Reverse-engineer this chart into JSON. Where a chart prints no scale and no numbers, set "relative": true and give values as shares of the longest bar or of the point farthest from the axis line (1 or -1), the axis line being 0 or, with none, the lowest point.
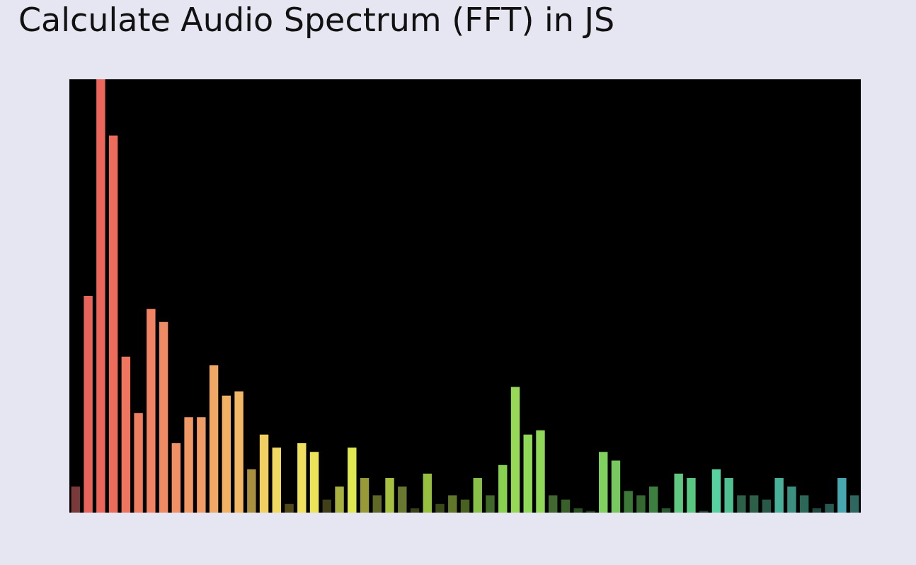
{
  "chart_data": {
    "type": "bar",
    "title": "Calculate Audio Spectrum (FFT) in JS",
    "relative": true,
    "categories": [
      null,
      null,
      null,
      null,
      null,
      null,
      null,
      null,
      null,
      null,
      null,
      null,
      null,
      null,
      null,
      null,
      null,
      null,
      null,
      null,
      null,
      null,
      null,
      null,
      null,
      null,
      null,
      null,
      null,
      null,
      null,
      null,
      null,
      null,
      null,
      null,
      null,
      null,
      null,
      null,
      null,
      null,
      null,
      null,
      null,
      null,
      null,
      null,
      null,
      null,
      null,
      null,
      null,
      null,
      null,
      null,
      null,
      null,
      null,
      null,
      null,
      null,
      null
    ],
    "values": [
      0.06,
      0.5,
      1.0,
      0.87,
      0.36,
      0.23,
      0.47,
      0.44,
      0.16,
      0.22,
      0.22,
      0.34,
      0.27,
      0.28,
      0.1,
      0.18,
      0.15,
      0.02,
      0.16,
      0.14,
      0.03,
      0.06,
      0.15,
      0.08,
      0.04,
      0.08,
      0.06,
      0.01,
      0.09,
      0.02,
      0.04,
      0.03,
      0.08,
      0.04,
      0.11,
      0.29,
      0.18,
      0.19,
      0.04,
      0.03,
      0.01,
      0.004,
      0.14,
      0.12,
      0.05,
      0.04,
      0.06,
      0.01,
      0.09,
      0.08,
      0.004,
      0.1,
      0.08,
      0.04,
      0.04,
      0.03,
      0.08,
      0.06,
      0.04,
      0.01,
      0.02,
      0.08,
      0.04
    ],
    "colors": [
      "#7a3a3a",
      "#e8645a",
      "#ea665a",
      "#ec6c5c",
      "#ee765e",
      "#ef7e60",
      "#f08462",
      "#f08a62",
      "#f09064",
      "#f09866",
      "#f09c66",
      "#f0a866",
      "#f2b266",
      "#f2b866",
      "#a89040",
      "#f2d060",
      "#f2d860",
      "#504818",
      "#f0e060",
      "#ece458",
      "#404018",
      "#a8b040",
      "#e0e850",
      "#989a38",
      "#606828",
      "#a8c040",
      "#687830",
      "#384018",
      "#98c040",
      "#384818",
      "#607828",
      "#486020",
      "#88c048",
      "#406828",
      "#88d050",
      "#98d858",
      "#90d858",
      "#90d858",
      "#406830",
      "#386028",
      "#285020",
      "#204018",
      "#80d060",
      "#78c860",
      "#3c7838",
      "#346830",
      "#3c8040",
      "#285830",
      "#60c880",
      "#58c880",
      "#204030",
      "#58d0a0",
      "#50c090",
      "#2c6048",
      "#2c6048",
      "#285848",
      "#48b098",
      "#3c9080",
      "#2c6858",
      "#204840",
      "#285850",
      "#48a8b0",
      "#2c6860"
    ]
  }
}
